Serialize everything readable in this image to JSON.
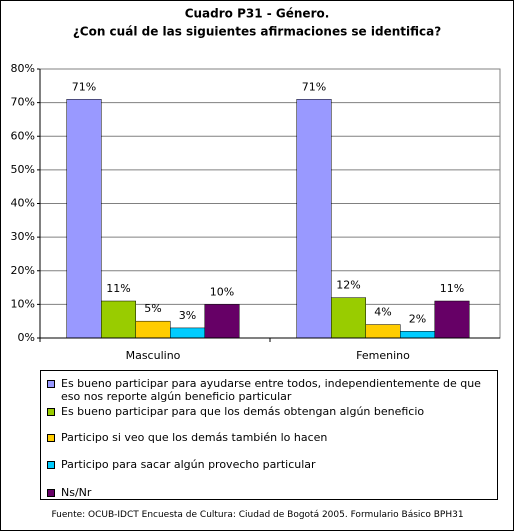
{
  "chart_data": {
    "type": "bar",
    "title": "Cuadro P31 - Género.",
    "subtitle": "¿Con cuál de las siguientes afirmaciones se identifica?",
    "categories": [
      "Masculino",
      "Femenino"
    ],
    "series": [
      {
        "name": "Es bueno participar para ayudarse entre todos, independientemente de que eso nos reporte algún beneficio particular",
        "color": "#9999ff",
        "values": [
          71,
          71
        ],
        "value_labels": [
          "71%",
          "71%"
        ]
      },
      {
        "name": "Es bueno participar para que los demás obtengan algún beneficio",
        "color": "#99cc00",
        "values": [
          11,
          12
        ],
        "value_labels": [
          "11%",
          "12%"
        ]
      },
      {
        "name": "Participo si veo que los demás también lo hacen",
        "color": "#ffcc00",
        "values": [
          5,
          4
        ],
        "value_labels": [
          "5%",
          "4%"
        ]
      },
      {
        "name": "Participo para sacar algún provecho particular",
        "color": "#00ccff",
        "values": [
          3,
          2
        ],
        "value_labels": [
          "3%",
          "2%"
        ]
      },
      {
        "name": "Ns/Nr",
        "color": "#660066",
        "values": [
          10,
          11
        ],
        "value_labels": [
          "10%",
          "11%"
        ]
      }
    ],
    "ylim": [
      0,
      80
    ],
    "yticks": [
      {
        "value": 0,
        "label": "0%"
      },
      {
        "value": 10,
        "label": "10%"
      },
      {
        "value": 20,
        "label": "20%"
      },
      {
        "value": 30,
        "label": "30%"
      },
      {
        "value": 40,
        "label": "40%"
      },
      {
        "value": 50,
        "label": "50%"
      },
      {
        "value": 60,
        "label": "60%"
      },
      {
        "value": 70,
        "label": "70%"
      },
      {
        "value": 80,
        "label": "80%"
      }
    ],
    "grid": true,
    "source": "Fuente: OCUB-IDCT Encuesta de Cultura: Ciudad de Bogotá 2005. Formulario Básico BPH31"
  }
}
